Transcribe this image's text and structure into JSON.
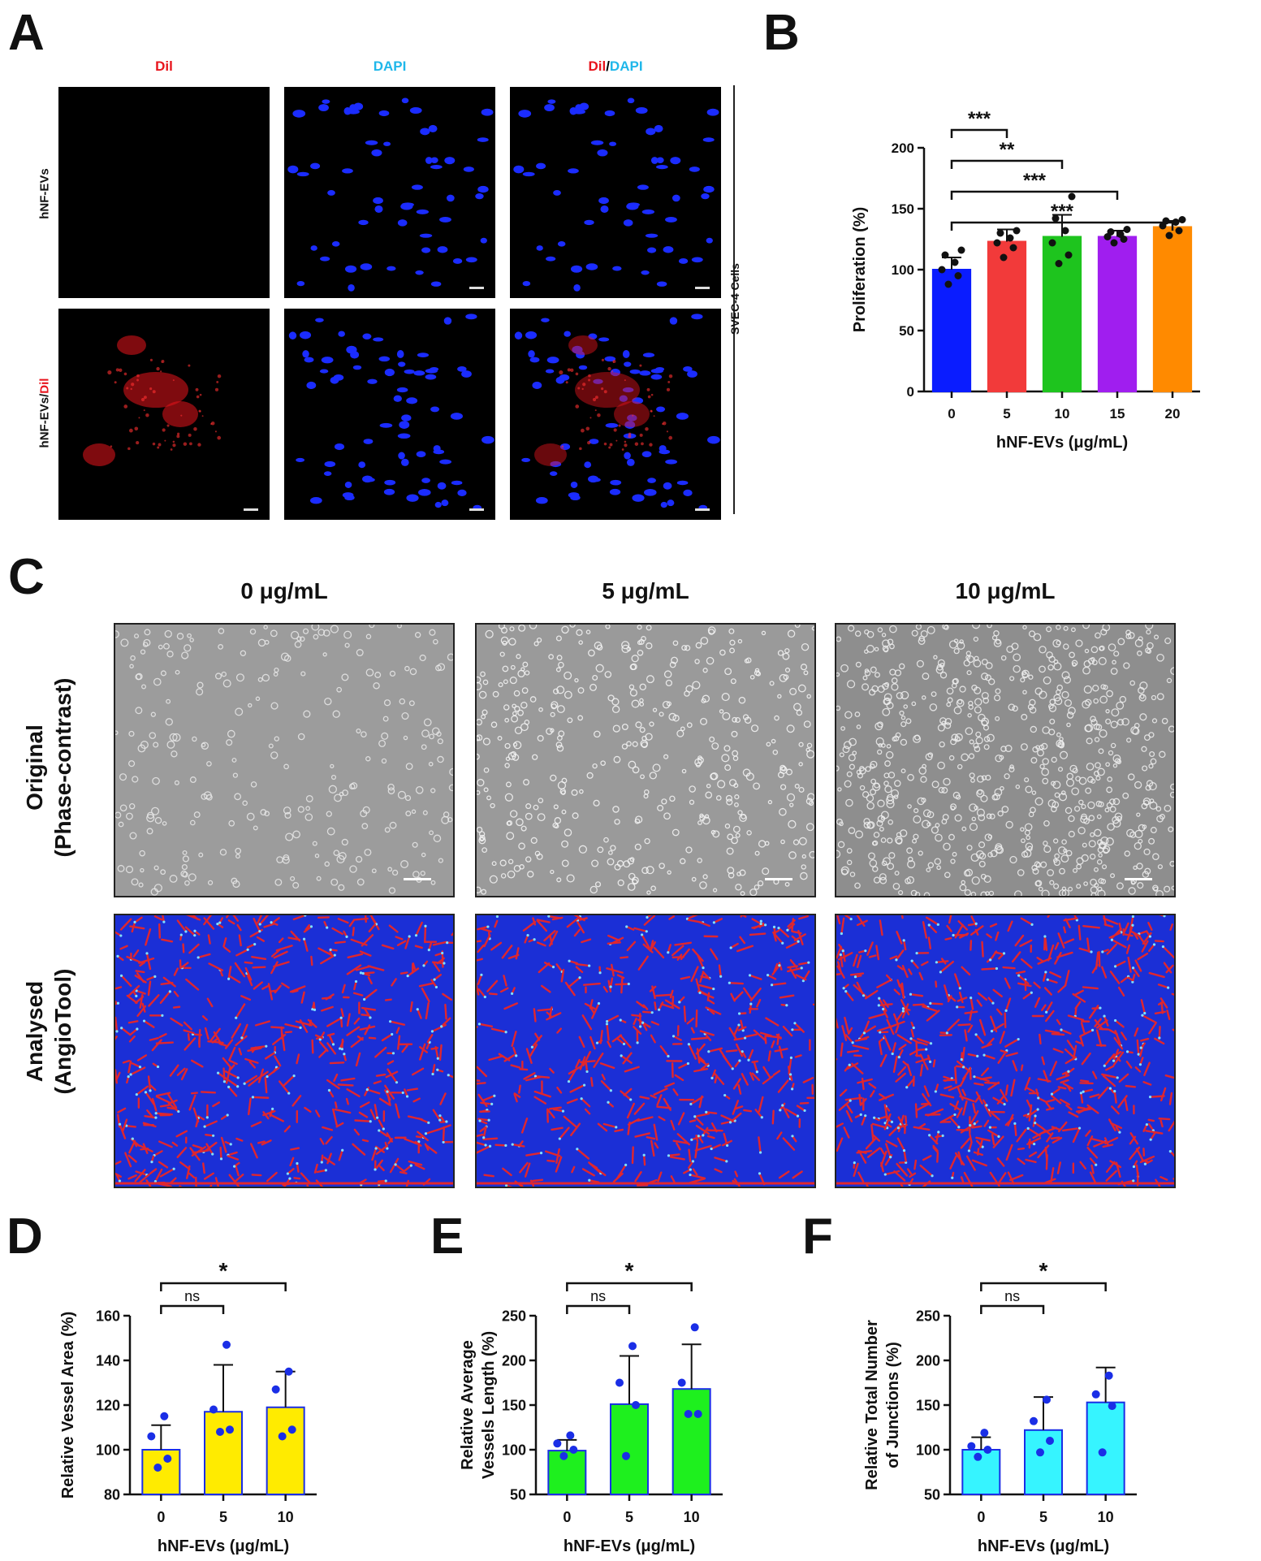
{
  "panels": {
    "a": {
      "letter": "A"
    },
    "b": {
      "letter": "B"
    },
    "c": {
      "letter": "C"
    },
    "d": {
      "letter": "D"
    },
    "e": {
      "letter": "E"
    },
    "f": {
      "letter": "F"
    }
  },
  "panelA": {
    "col1": "Dil",
    "col2": "DAPI",
    "col3_red": "Dil",
    "col3_sep": "/",
    "col3_blue": "DAPI",
    "row1": "hNF-EVs",
    "row2_prefix": "hNF-EVs/",
    "row2_red": "Dil",
    "side_label": "SVEC-4 Cells",
    "colors": {
      "red": "#e8141c",
      "blue": "#1fb7ea",
      "nucleus": "#1b2cff"
    }
  },
  "panelC": {
    "col_titles": [
      "0 μg/mL",
      "5 μg/mL",
      "10 μg/mL"
    ],
    "row1_line1": "Original",
    "row1_line2": "(Phase-contrast)",
    "row2_line1": "Analysed",
    "row2_line2": "(AngioTool)",
    "colors": {
      "phase_bg": "#9a9a9a",
      "angio_bg": "#1b2fd6",
      "angio_red": "#e0262e"
    }
  },
  "chart_data": [
    {
      "id": "B",
      "type": "bar",
      "categories": [
        "0",
        "5",
        "10",
        "15",
        "20"
      ],
      "values": [
        100,
        123,
        127,
        127,
        135
      ],
      "errors": [
        10,
        10,
        18,
        5,
        5
      ],
      "points": [
        [
          88,
          95,
          100,
          106,
          112,
          116
        ],
        [
          110,
          118,
          122,
          126,
          130,
          132
        ],
        [
          105,
          112,
          122,
          132,
          142,
          160
        ],
        [
          122,
          125,
          127,
          129,
          131,
          133
        ],
        [
          128,
          132,
          136,
          139,
          140,
          141
        ]
      ],
      "colors": [
        "#0a1cff",
        "#f23a3a",
        "#1ec41e",
        "#a01eef",
        "#ff8a00"
      ],
      "xlabel": "hNF-EVs (μg/mL)",
      "ylabel": "Proliferation (%)",
      "ylim": [
        0,
        200
      ],
      "yticks": [
        0,
        50,
        100,
        150,
        200
      ],
      "significance": [
        {
          "from": 0,
          "to": 1,
          "label": "***"
        },
        {
          "from": 0,
          "to": 2,
          "label": "**"
        },
        {
          "from": 0,
          "to": 3,
          "label": "***"
        },
        {
          "from": 0,
          "to": 4,
          "label": "***"
        }
      ]
    },
    {
      "id": "D",
      "type": "bar",
      "categories": [
        "0",
        "5",
        "10"
      ],
      "values": [
        100,
        117,
        119
      ],
      "errors": [
        11,
        21,
        16
      ],
      "points": [
        [
          92,
          96,
          106,
          115
        ],
        [
          108,
          109,
          118,
          147
        ],
        [
          106,
          109,
          127,
          135
        ]
      ],
      "colors": [
        "#ffeb00",
        "#ffeb00",
        "#ffeb00"
      ],
      "xlabel": "hNF-EVs (μg/mL)",
      "ylabel": "Relative Vessel Area (%)",
      "ylim": [
        80,
        160
      ],
      "yticks": [
        80,
        100,
        120,
        140,
        160
      ],
      "significance": [
        {
          "from": 0,
          "to": 1,
          "label": "ns"
        },
        {
          "from": 0,
          "to": 2,
          "label": "*"
        }
      ]
    },
    {
      "id": "E",
      "type": "bar",
      "categories": [
        "0",
        "5",
        "10"
      ],
      "values": [
        99,
        151,
        168
      ],
      "errors": [
        12,
        54,
        50
      ],
      "points": [
        [
          93,
          100,
          107,
          116
        ],
        [
          93,
          150,
          175,
          216
        ],
        [
          140,
          140,
          175,
          237
        ]
      ],
      "colors": [
        "#1ef01e",
        "#1ef01e",
        "#1ef01e"
      ],
      "xlabel": "hNF-EVs (μg/mL)",
      "ylabel_line1": "Relative Average",
      "ylabel_line2": "Vessels Length (%)",
      "ylim": [
        50,
        250
      ],
      "yticks": [
        50,
        100,
        150,
        200,
        250
      ],
      "significance": [
        {
          "from": 0,
          "to": 1,
          "label": "ns"
        },
        {
          "from": 0,
          "to": 2,
          "label": "*"
        }
      ]
    },
    {
      "id": "F",
      "type": "bar",
      "categories": [
        "0",
        "5",
        "10"
      ],
      "values": [
        100,
        122,
        153
      ],
      "errors": [
        14,
        37,
        39
      ],
      "points": [
        [
          92,
          100,
          104,
          119
        ],
        [
          97,
          110,
          132,
          156
        ],
        [
          97,
          149,
          162,
          183
        ]
      ],
      "colors": [
        "#36f4ff",
        "#36f4ff",
        "#36f4ff"
      ],
      "xlabel": "hNF-EVs (μg/mL)",
      "ylabel_line1": "Relative Total Number",
      "ylabel_line2": "of Junctions (%)",
      "ylim": [
        50,
        250
      ],
      "yticks": [
        50,
        100,
        150,
        200,
        250
      ],
      "significance": [
        {
          "from": 0,
          "to": 1,
          "label": "ns"
        },
        {
          "from": 0,
          "to": 2,
          "label": "*"
        }
      ]
    }
  ]
}
